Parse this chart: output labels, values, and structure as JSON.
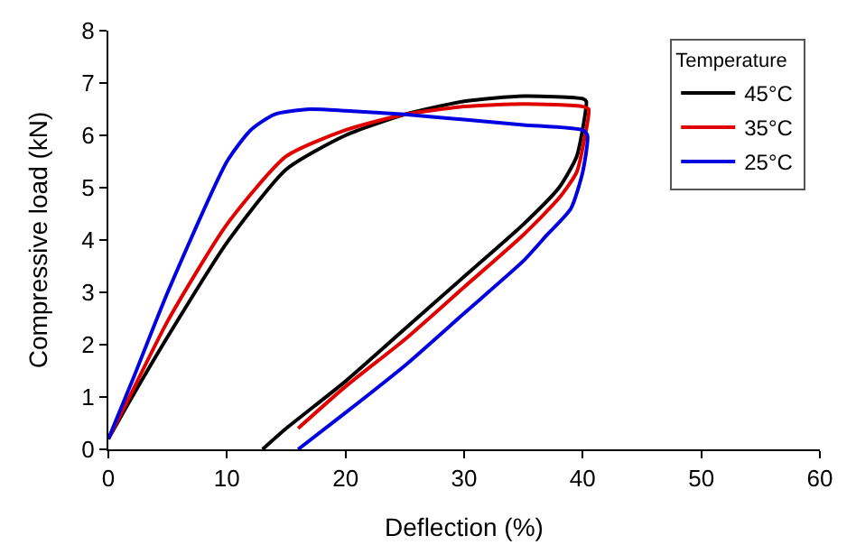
{
  "chart_data": {
    "type": "line",
    "xlabel": "Deflection (%)",
    "ylabel": "Compressive load (kN)",
    "legend_title": "Temperature",
    "legend": "top right",
    "marker": "none",
    "line_style": "solid",
    "xlim": [
      0,
      60
    ],
    "xticks": [
      0,
      10,
      20,
      30,
      40,
      50,
      60
    ],
    "ylim": [
      0,
      8
    ],
    "yticks": [
      0,
      1,
      2,
      3,
      4,
      5,
      6,
      7,
      8
    ],
    "series": [
      {
        "name": "45°C",
        "color": "#000000",
        "x": [
          0,
          2,
          5,
          10,
          15,
          20,
          25,
          30,
          35,
          40,
          40.3,
          40.2,
          39.5,
          38,
          35,
          30,
          25,
          20,
          15,
          13
        ],
        "values": [
          0.2,
          1.0,
          2.15,
          3.95,
          5.35,
          6.0,
          6.4,
          6.65,
          6.75,
          6.7,
          6.65,
          6.4,
          5.6,
          5.0,
          4.3,
          3.3,
          2.3,
          1.3,
          0.4,
          0
        ]
      },
      {
        "name": "35°C",
        "color": "#e00000",
        "x": [
          0,
          2,
          5,
          10,
          15,
          20,
          25,
          30,
          35,
          40,
          40.5,
          40.2,
          39.5,
          38,
          35,
          30,
          25,
          20,
          16
        ],
        "values": [
          0.2,
          1.1,
          2.45,
          4.3,
          5.6,
          6.1,
          6.4,
          6.55,
          6.6,
          6.55,
          6.5,
          6.0,
          5.3,
          4.8,
          4.1,
          3.1,
          2.1,
          1.2,
          0.4
        ]
      },
      {
        "name": "25°C",
        "color": "#0000e0",
        "x": [
          0,
          2,
          5,
          10,
          12,
          14,
          17,
          20,
          25,
          30,
          35,
          40,
          40.4,
          40,
          39,
          37,
          35,
          30,
          25,
          20,
          16
        ],
        "values": [
          0.2,
          1.3,
          3.0,
          5.5,
          6.1,
          6.4,
          6.5,
          6.47,
          6.4,
          6.3,
          6.2,
          6.1,
          6.0,
          5.3,
          4.6,
          4.1,
          3.6,
          2.6,
          1.6,
          0.7,
          0
        ]
      }
    ]
  }
}
